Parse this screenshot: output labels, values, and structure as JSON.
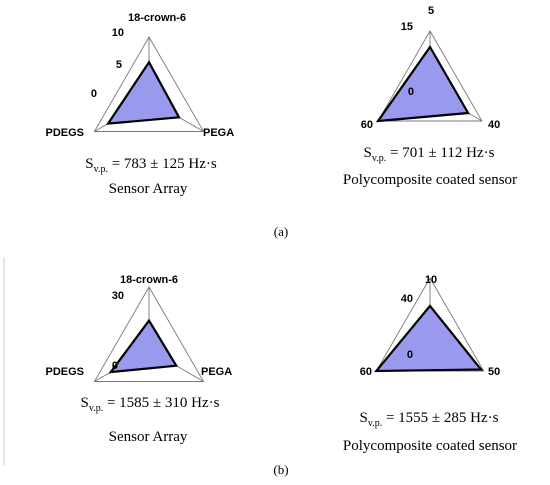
{
  "figure": {
    "panels": [
      {
        "label": "(a)"
      },
      {
        "label": "(b)"
      }
    ]
  },
  "chart_data": [
    {
      "type": "radar",
      "axes": [
        "18-crown-6",
        "PEGA",
        "PDEGS"
      ],
      "ticks": {
        "zero": "0",
        "mid": "5",
        "max": "10"
      },
      "rmax": 10,
      "values": [
        6,
        5.5,
        7.5
      ],
      "area_prefix": "S",
      "area_sub": "v.p.",
      "area_value": "= 783 ± 125 Hz·s",
      "caption": "Sensor Array",
      "fill": "#9999ee"
    },
    {
      "type": "radar",
      "axes": [
        "5",
        "40",
        "60"
      ],
      "ticks": {
        "zero": "0",
        "mid": "",
        "max": "15"
      },
      "rmax": 15,
      "values": [
        11,
        11,
        15
      ],
      "area_prefix": "S",
      "area_sub": "v.p.",
      "area_value": "= 701 ± 112 Hz·s",
      "caption": "Polycomposite coated sensor",
      "fill": "#9999ee"
    },
    {
      "type": "radar",
      "axes": [
        "18-crown-6",
        "PEGA",
        "PDEGS"
      ],
      "ticks": {
        "zero": "0",
        "mid": "",
        "max": "30"
      },
      "rmax": 30,
      "values": [
        14,
        15,
        21
      ],
      "area_prefix": "S",
      "area_sub": "v.p.",
      "area_value": "= 1585 ± 310 Hz·s",
      "caption": "Sensor Array",
      "fill": "#9999ee"
    },
    {
      "type": "radar",
      "axes": [
        "10",
        "50",
        "60"
      ],
      "ticks": {
        "zero": "0",
        "mid": "",
        "max": "40"
      },
      "rmax": 40,
      "values": [
        22,
        38,
        40
      ],
      "area_prefix": "S",
      "area_sub": "v.p.",
      "area_value": "= 1555 ± 285 Hz·s",
      "caption": "Polycomposite coated sensor",
      "fill": "#9999ee"
    }
  ]
}
